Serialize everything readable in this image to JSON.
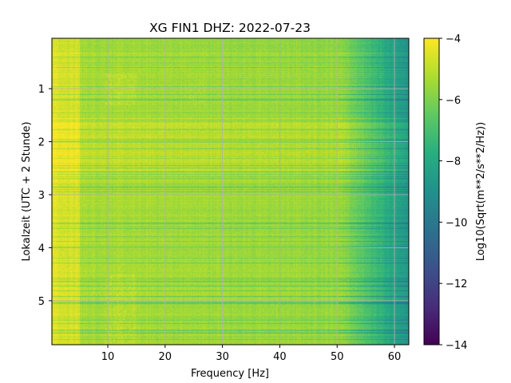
{
  "chart_data": {
    "type": "heatmap",
    "title": "XG FIN1  DHZ: 2022-07-23",
    "xlabel": "Frequency [Hz]",
    "ylabel": "Lokalzeit (UTC + 2 Stunde)",
    "colorbar_label": "Log10(Sqrt(m**2/s**2/Hz))",
    "colormap": "viridis",
    "xlim": [
      0.25,
      62.5
    ],
    "ylim": [
      5.83,
      0.05
    ],
    "y_inverted": true,
    "clim": [
      -14,
      -4
    ],
    "grid": true,
    "x_ticks": [
      10,
      20,
      30,
      40,
      50,
      60
    ],
    "x_tick_labels": [
      "10",
      "20",
      "30",
      "40",
      "50",
      "60"
    ],
    "y_ticks": [
      1,
      2,
      3,
      4,
      5
    ],
    "y_tick_labels": [
      "1",
      "2",
      "3",
      "4",
      "5"
    ],
    "colorbar_ticks": [
      -4,
      -6,
      -8,
      -10,
      -12,
      -14
    ],
    "colorbar_tick_labels": [
      "−4",
      "−6",
      "−8",
      "−10",
      "−12",
      "−14"
    ],
    "value_summary": {
      "low_freq_band_hz": [
        0.25,
        5
      ],
      "low_freq_level": -4.6,
      "mid_freq_level": -5.3,
      "rolloff_start_hz": 51,
      "high_freq_level_at_62hz": -8.7
    }
  }
}
